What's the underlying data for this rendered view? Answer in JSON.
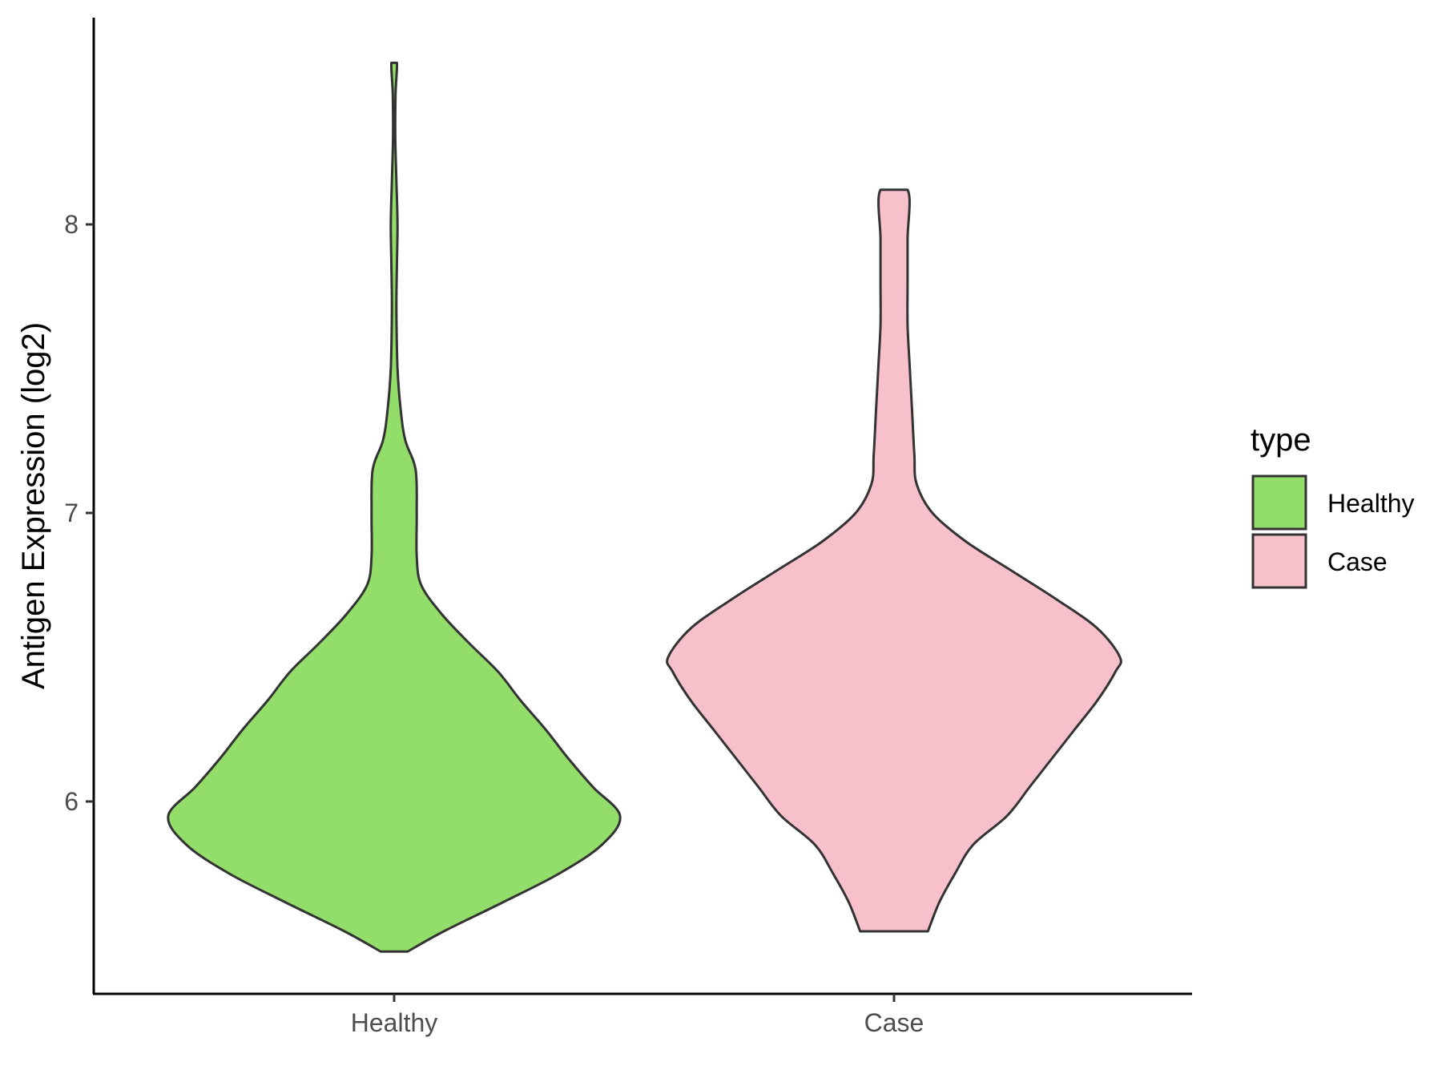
{
  "chart_data": {
    "type": "violin",
    "title": "",
    "xlabel": "",
    "ylabel": "Antigen Expression (log2)",
    "ylim": [
      5.35,
      8.72
    ],
    "yticks": [
      6,
      7,
      8
    ],
    "grid": false,
    "legend": {
      "title": "type",
      "position": "right"
    },
    "categories": [
      "Healthy",
      "Case"
    ],
    "series": [
      {
        "name": "Healthy",
        "color": "#93DD6A",
        "min": 5.48,
        "max": 8.56,
        "density": [
          [
            5.48,
            0.06
          ],
          [
            5.55,
            0.22
          ],
          [
            5.65,
            0.48
          ],
          [
            5.75,
            0.73
          ],
          [
            5.85,
            0.92
          ],
          [
            5.95,
            1.0
          ],
          [
            6.05,
            0.88
          ],
          [
            6.15,
            0.77
          ],
          [
            6.25,
            0.67
          ],
          [
            6.35,
            0.56
          ],
          [
            6.45,
            0.46
          ],
          [
            6.55,
            0.33
          ],
          [
            6.65,
            0.21
          ],
          [
            6.75,
            0.12
          ],
          [
            6.85,
            0.1
          ],
          [
            7.0,
            0.1
          ],
          [
            7.15,
            0.095
          ],
          [
            7.25,
            0.05
          ],
          [
            7.35,
            0.03
          ],
          [
            7.5,
            0.015
          ],
          [
            7.7,
            0.01
          ],
          [
            7.85,
            0.012
          ],
          [
            8.0,
            0.015
          ],
          [
            8.15,
            0.01
          ],
          [
            8.3,
            0.005
          ],
          [
            8.45,
            0.006
          ],
          [
            8.56,
            0.012
          ]
        ]
      },
      {
        "name": "Case",
        "color": "#F7C0CB",
        "min": 5.55,
        "max": 8.12,
        "density": [
          [
            5.55,
            0.15
          ],
          [
            5.65,
            0.2
          ],
          [
            5.75,
            0.27
          ],
          [
            5.85,
            0.35
          ],
          [
            5.95,
            0.5
          ],
          [
            6.05,
            0.6
          ],
          [
            6.15,
            0.7
          ],
          [
            6.25,
            0.8
          ],
          [
            6.35,
            0.9
          ],
          [
            6.45,
            0.98
          ],
          [
            6.5,
            1.0
          ],
          [
            6.6,
            0.9
          ],
          [
            6.7,
            0.72
          ],
          [
            6.8,
            0.52
          ],
          [
            6.9,
            0.32
          ],
          [
            7.0,
            0.17
          ],
          [
            7.1,
            0.1
          ],
          [
            7.2,
            0.09
          ],
          [
            7.35,
            0.08
          ],
          [
            7.5,
            0.07
          ],
          [
            7.65,
            0.06
          ],
          [
            7.8,
            0.06
          ],
          [
            7.95,
            0.06
          ],
          [
            8.12,
            0.06
          ]
        ]
      }
    ]
  }
}
